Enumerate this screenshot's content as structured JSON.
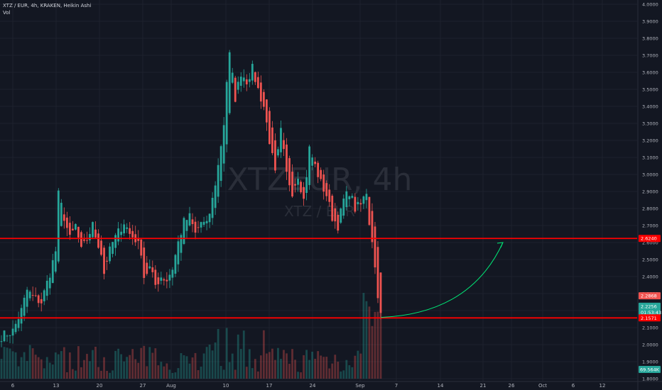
{
  "legend": {
    "title": "XTZ / EUR, 4h, KRAKEN, Heikin Ashi",
    "volume_label": "Vol"
  },
  "watermark": {
    "symbol": "XTZEUR, 4h",
    "pair": "XTZ / EUR"
  },
  "colors": {
    "background": "#131722",
    "grid": "#1e222d",
    "up": "#26a69a",
    "down": "#ef5350",
    "level_line": "#ff0000",
    "arrow": "#00e676",
    "axis_text": "#b2b5be"
  },
  "chart_data": {
    "type": "candlestick",
    "timeframe": "4h",
    "ylim": [
      1.8,
      4.0
    ],
    "y_ticks": [
      "1.8000",
      "1.9000",
      "2.0000",
      "2.1000",
      "2.2000",
      "2.3000",
      "2.4000",
      "2.5000",
      "2.6000",
      "2.7000",
      "2.8000",
      "2.9000",
      "3.0000",
      "3.1000",
      "3.2000",
      "3.3000",
      "3.4000",
      "3.5000",
      "3.6000",
      "3.7000",
      "3.8000",
      "3.9000",
      "4.0000"
    ],
    "x_ticks": [
      "6",
      "13",
      "20",
      "27",
      "Aug",
      "10",
      "17",
      "24",
      "Sep",
      "7",
      "14",
      "21",
      "26",
      "Oct",
      "6",
      "12"
    ],
    "series_path": [
      [
        0,
        2.05
      ],
      [
        4,
        2.08
      ],
      [
        7,
        2.2
      ],
      [
        9,
        2.32
      ],
      [
        11,
        2.28
      ],
      [
        14,
        2.25
      ],
      [
        17,
        2.42
      ],
      [
        19,
        2.55
      ],
      [
        20,
        2.88
      ],
      [
        22,
        2.75
      ],
      [
        24,
        2.62
      ],
      [
        26,
        2.7
      ],
      [
        28,
        2.55
      ],
      [
        30,
        2.62
      ],
      [
        32,
        2.7
      ],
      [
        33,
        2.64
      ],
      [
        35,
        2.54
      ],
      [
        36,
        2.42
      ],
      [
        37,
        2.5
      ],
      [
        39,
        2.6
      ],
      [
        41,
        2.66
      ],
      [
        43,
        2.72
      ],
      [
        45,
        2.65
      ],
      [
        47,
        2.62
      ],
      [
        49,
        2.55
      ],
      [
        50,
        2.4
      ],
      [
        52,
        2.45
      ],
      [
        54,
        2.35
      ],
      [
        56,
        2.4
      ],
      [
        58,
        2.38
      ],
      [
        60,
        2.45
      ],
      [
        62,
        2.6
      ],
      [
        64,
        2.72
      ],
      [
        66,
        2.75
      ],
      [
        68,
        2.65
      ],
      [
        70,
        2.72
      ],
      [
        72,
        2.7
      ],
      [
        74,
        2.85
      ],
      [
        76,
        3.05
      ],
      [
        78,
        3.3
      ],
      [
        79,
        3.55
      ],
      [
        80,
        3.7
      ],
      [
        82,
        3.45
      ],
      [
        84,
        3.6
      ],
      [
        86,
        3.55
      ],
      [
        88,
        3.62
      ],
      [
        90,
        3.5
      ],
      [
        92,
        3.4
      ],
      [
        94,
        3.2
      ],
      [
        96,
        3.0
      ],
      [
        98,
        3.25
      ],
      [
        100,
        3.0
      ],
      [
        102,
        2.9
      ],
      [
        104,
        3.0
      ],
      [
        106,
        2.85
      ],
      [
        108,
        3.15
      ],
      [
        110,
        3.05
      ],
      [
        112,
        2.95
      ],
      [
        114,
        2.88
      ],
      [
        116,
        2.75
      ],
      [
        118,
        2.7
      ],
      [
        120,
        2.85
      ],
      [
        122,
        2.9
      ],
      [
        124,
        2.8
      ],
      [
        126,
        2.82
      ],
      [
        128,
        2.9
      ],
      [
        129,
        2.72
      ],
      [
        130,
        2.62
      ],
      [
        131,
        2.45
      ],
      [
        132,
        2.3
      ],
      [
        133,
        2.17
      ]
    ],
    "volume_note": "Vol",
    "levels": [
      2.624,
      2.1571
    ],
    "price_labels": [
      {
        "value": 2.624,
        "text": "2.6240",
        "color": "#ff0000"
      },
      {
        "value": 2.2868,
        "text": "2.2868",
        "color": "#ef5350"
      },
      {
        "value": 2.2256,
        "text": "2.2256",
        "color": "#26a69a"
      },
      {
        "value": 2.189,
        "text": "01:53:43",
        "color": "#26a69a"
      },
      {
        "value": 2.1571,
        "text": "2.1571",
        "color": "#ff0000"
      }
    ],
    "volume_label": {
      "text": "69.564K",
      "color": "#26a69a"
    },
    "projection_arrow": {
      "from": [
        133,
        2.16
      ],
      "to": [
        174,
        2.6
      ]
    }
  }
}
